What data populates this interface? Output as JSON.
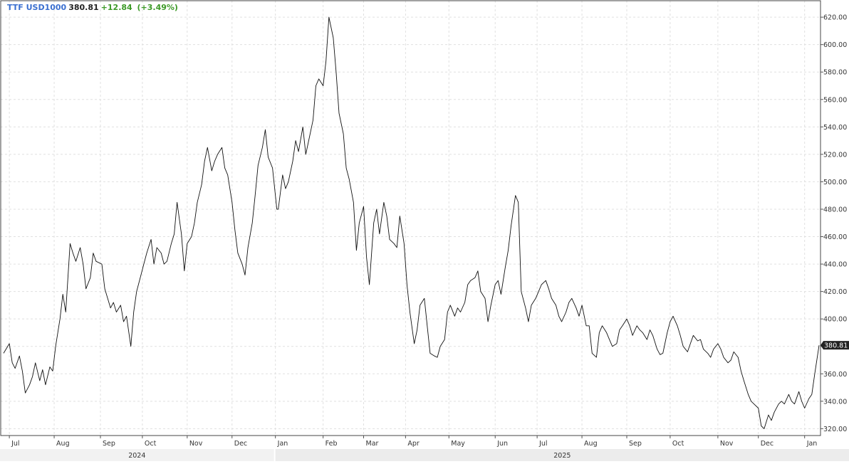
{
  "header": {
    "symbol": "TTF USD1000",
    "last_price": "380.81",
    "change": "+12.84",
    "change_pct": "(+3.49%)",
    "change_color": "#3d9a28"
  },
  "colors": {
    "line": "#111111",
    "grid": "#e0e0e0",
    "axis_text": "#333333",
    "year_band": "#ececec",
    "price_tag_bg": "#222222",
    "price_tag_text": "#ffffff"
  },
  "chart_data": {
    "type": "line",
    "title": "TTF USD1000",
    "xlabel": "",
    "ylabel": "",
    "y_axis_side": "right",
    "grid": true,
    "ylim": [
      315,
      632
    ],
    "y_ticks": [
      "320.00",
      "340.00",
      "360.00",
      "380.00",
      "400.00",
      "420.00",
      "440.00",
      "460.00",
      "480.00",
      "500.00",
      "520.00",
      "540.00",
      "560.00",
      "580.00",
      "600.00",
      "620.00"
    ],
    "x_month_labels": [
      {
        "label": "Jul",
        "date": "2024-07-01"
      },
      {
        "label": "Aug",
        "date": "2024-08-01"
      },
      {
        "label": "Sep",
        "date": "2024-09-02"
      },
      {
        "label": "Oct",
        "date": "2024-10-01"
      },
      {
        "label": "Nov",
        "date": "2024-11-01"
      },
      {
        "label": "Dec",
        "date": "2024-12-02"
      },
      {
        "label": "Jan",
        "date": "2025-01-01"
      },
      {
        "label": "Feb",
        "date": "2025-02-03"
      },
      {
        "label": "Mar",
        "date": "2025-03-03"
      },
      {
        "label": "Apr",
        "date": "2025-04-01"
      },
      {
        "label": "May",
        "date": "2025-05-01"
      },
      {
        "label": "Jun",
        "date": "2025-06-02"
      },
      {
        "label": "Jul",
        "date": "2025-07-01"
      },
      {
        "label": "Aug",
        "date": "2025-08-01"
      },
      {
        "label": "Sep",
        "date": "2025-09-01"
      },
      {
        "label": "Oct",
        "date": "2025-10-01"
      },
      {
        "label": "Nov",
        "date": "2025-11-03"
      },
      {
        "label": "Dec",
        "date": "2025-12-01"
      },
      {
        "label": "Jan",
        "date": "2026-01-02"
      }
    ],
    "x_year_labels": [
      {
        "label": "2024",
        "from": "2024-06-27",
        "to": "2024-12-31"
      },
      {
        "label": "2025",
        "from": "2025-01-01",
        "to": "2026-01-12"
      }
    ],
    "last_value_tag": "380.81",
    "series": [
      {
        "values": [
          [
            "2024-06-27",
            375
          ],
          [
            "2024-07-01",
            382
          ],
          [
            "2024-07-03",
            368
          ],
          [
            "2024-07-05",
            364
          ],
          [
            "2024-07-08",
            373
          ],
          [
            "2024-07-10",
            362
          ],
          [
            "2024-07-12",
            346
          ],
          [
            "2024-07-15",
            352
          ],
          [
            "2024-07-17",
            358
          ],
          [
            "2024-07-19",
            368
          ],
          [
            "2024-07-22",
            355
          ],
          [
            "2024-07-24",
            363
          ],
          [
            "2024-07-26",
            352
          ],
          [
            "2024-07-29",
            365
          ],
          [
            "2024-07-31",
            362
          ],
          [
            "2024-08-02",
            380
          ],
          [
            "2024-08-05",
            400
          ],
          [
            "2024-08-07",
            418
          ],
          [
            "2024-08-09",
            405
          ],
          [
            "2024-08-12",
            455
          ],
          [
            "2024-08-14",
            448
          ],
          [
            "2024-08-16",
            442
          ],
          [
            "2024-08-19",
            452
          ],
          [
            "2024-08-21",
            440
          ],
          [
            "2024-08-23",
            422
          ],
          [
            "2024-08-26",
            430
          ],
          [
            "2024-08-28",
            448
          ],
          [
            "2024-08-30",
            442
          ],
          [
            "2024-09-03",
            440
          ],
          [
            "2024-09-05",
            422
          ],
          [
            "2024-09-09",
            408
          ],
          [
            "2024-09-11",
            412
          ],
          [
            "2024-09-13",
            405
          ],
          [
            "2024-09-16",
            410
          ],
          [
            "2024-09-18",
            398
          ],
          [
            "2024-09-20",
            402
          ],
          [
            "2024-09-23",
            380
          ],
          [
            "2024-09-25",
            405
          ],
          [
            "2024-09-27",
            420
          ],
          [
            "2024-09-30",
            432
          ],
          [
            "2024-10-02",
            440
          ],
          [
            "2024-10-04",
            448
          ],
          [
            "2024-10-07",
            458
          ],
          [
            "2024-10-09",
            440
          ],
          [
            "2024-10-11",
            452
          ],
          [
            "2024-10-14",
            448
          ],
          [
            "2024-10-16",
            440
          ],
          [
            "2024-10-18",
            442
          ],
          [
            "2024-10-21",
            455
          ],
          [
            "2024-10-23",
            462
          ],
          [
            "2024-10-25",
            485
          ],
          [
            "2024-10-28",
            462
          ],
          [
            "2024-10-30",
            435
          ],
          [
            "2024-11-01",
            455
          ],
          [
            "2024-11-04",
            460
          ],
          [
            "2024-11-06",
            470
          ],
          [
            "2024-11-08",
            485
          ],
          [
            "2024-11-11",
            498
          ],
          [
            "2024-11-13",
            515
          ],
          [
            "2024-11-15",
            525
          ],
          [
            "2024-11-18",
            508
          ],
          [
            "2024-11-20",
            515
          ],
          [
            "2024-11-22",
            520
          ],
          [
            "2024-11-25",
            525
          ],
          [
            "2024-11-27",
            510
          ],
          [
            "2024-11-29",
            505
          ],
          [
            "2024-12-02",
            485
          ],
          [
            "2024-12-04",
            465
          ],
          [
            "2024-12-06",
            448
          ],
          [
            "2024-12-09",
            440
          ],
          [
            "2024-12-11",
            432
          ],
          [
            "2024-12-13",
            452
          ],
          [
            "2024-12-16",
            470
          ],
          [
            "2024-12-18",
            490
          ],
          [
            "2024-12-20",
            512
          ],
          [
            "2024-12-23",
            525
          ],
          [
            "2024-12-25",
            538
          ],
          [
            "2024-12-27",
            518
          ],
          [
            "2024-12-30",
            510
          ],
          [
            "2025-01-02",
            480
          ],
          [
            "2025-01-03",
            480
          ],
          [
            "2025-01-06",
            505
          ],
          [
            "2025-01-08",
            495
          ],
          [
            "2025-01-10",
            500
          ],
          [
            "2025-01-13",
            515
          ],
          [
            "2025-01-15",
            530
          ],
          [
            "2025-01-17",
            522
          ],
          [
            "2025-01-20",
            540
          ],
          [
            "2025-01-22",
            520
          ],
          [
            "2025-01-24",
            530
          ],
          [
            "2025-01-27",
            545
          ],
          [
            "2025-01-29",
            570
          ],
          [
            "2025-01-31",
            575
          ],
          [
            "2025-02-03",
            570
          ],
          [
            "2025-02-05",
            588
          ],
          [
            "2025-02-07",
            620
          ],
          [
            "2025-02-10",
            605
          ],
          [
            "2025-02-12",
            580
          ],
          [
            "2025-02-14",
            550
          ],
          [
            "2025-02-17",
            535
          ],
          [
            "2025-02-19",
            510
          ],
          [
            "2025-02-21",
            502
          ],
          [
            "2025-02-24",
            485
          ],
          [
            "2025-02-26",
            450
          ],
          [
            "2025-02-28",
            470
          ],
          [
            "2025-03-03",
            482
          ],
          [
            "2025-03-05",
            445
          ],
          [
            "2025-03-07",
            425
          ],
          [
            "2025-03-10",
            470
          ],
          [
            "2025-03-12",
            480
          ],
          [
            "2025-03-14",
            462
          ],
          [
            "2025-03-17",
            485
          ],
          [
            "2025-03-19",
            475
          ],
          [
            "2025-03-21",
            458
          ],
          [
            "2025-03-24",
            455
          ],
          [
            "2025-03-26",
            452
          ],
          [
            "2025-03-28",
            475
          ],
          [
            "2025-03-31",
            455
          ],
          [
            "2025-04-02",
            425
          ],
          [
            "2025-04-04",
            405
          ],
          [
            "2025-04-07",
            382
          ],
          [
            "2025-04-09",
            392
          ],
          [
            "2025-04-11",
            410
          ],
          [
            "2025-04-14",
            415
          ],
          [
            "2025-04-16",
            395
          ],
          [
            "2025-04-18",
            375
          ],
          [
            "2025-04-21",
            373
          ],
          [
            "2025-04-23",
            372
          ],
          [
            "2025-04-25",
            380
          ],
          [
            "2025-04-28",
            385
          ],
          [
            "2025-04-30",
            405
          ],
          [
            "2025-05-02",
            410
          ],
          [
            "2025-05-05",
            402
          ],
          [
            "2025-05-07",
            408
          ],
          [
            "2025-05-09",
            405
          ],
          [
            "2025-05-12",
            412
          ],
          [
            "2025-05-14",
            425
          ],
          [
            "2025-05-16",
            428
          ],
          [
            "2025-05-19",
            430
          ],
          [
            "2025-05-21",
            435
          ],
          [
            "2025-05-23",
            420
          ],
          [
            "2025-05-26",
            415
          ],
          [
            "2025-05-28",
            398
          ],
          [
            "2025-05-30",
            410
          ],
          [
            "2025-06-02",
            425
          ],
          [
            "2025-06-04",
            428
          ],
          [
            "2025-06-06",
            418
          ],
          [
            "2025-06-09",
            438
          ],
          [
            "2025-06-11",
            450
          ],
          [
            "2025-06-13",
            468
          ],
          [
            "2025-06-16",
            490
          ],
          [
            "2025-06-18",
            485
          ],
          [
            "2025-06-20",
            420
          ],
          [
            "2025-06-23",
            408
          ],
          [
            "2025-06-25",
            398
          ],
          [
            "2025-06-27",
            410
          ],
          [
            "2025-06-30",
            415
          ],
          [
            "2025-07-02",
            420
          ],
          [
            "2025-07-04",
            425
          ],
          [
            "2025-07-07",
            428
          ],
          [
            "2025-07-09",
            422
          ],
          [
            "2025-07-11",
            415
          ],
          [
            "2025-07-14",
            410
          ],
          [
            "2025-07-16",
            402
          ],
          [
            "2025-07-18",
            398
          ],
          [
            "2025-07-21",
            405
          ],
          [
            "2025-07-23",
            412
          ],
          [
            "2025-07-25",
            415
          ],
          [
            "2025-07-28",
            408
          ],
          [
            "2025-07-30",
            402
          ],
          [
            "2025-08-01",
            410
          ],
          [
            "2025-08-04",
            395
          ],
          [
            "2025-08-06",
            395
          ],
          [
            "2025-08-08",
            375
          ],
          [
            "2025-08-11",
            372
          ],
          [
            "2025-08-13",
            390
          ],
          [
            "2025-08-15",
            395
          ],
          [
            "2025-08-18",
            390
          ],
          [
            "2025-08-20",
            385
          ],
          [
            "2025-08-22",
            380
          ],
          [
            "2025-08-25",
            382
          ],
          [
            "2025-08-27",
            392
          ],
          [
            "2025-08-29",
            395
          ],
          [
            "2025-09-01",
            400
          ],
          [
            "2025-09-03",
            395
          ],
          [
            "2025-09-05",
            388
          ],
          [
            "2025-09-08",
            395
          ],
          [
            "2025-09-10",
            392
          ],
          [
            "2025-09-12",
            390
          ],
          [
            "2025-09-15",
            385
          ],
          [
            "2025-09-17",
            392
          ],
          [
            "2025-09-19",
            388
          ],
          [
            "2025-09-22",
            378
          ],
          [
            "2025-09-24",
            374
          ],
          [
            "2025-09-26",
            375
          ],
          [
            "2025-09-29",
            390
          ],
          [
            "2025-10-01",
            398
          ],
          [
            "2025-10-03",
            402
          ],
          [
            "2025-10-06",
            395
          ],
          [
            "2025-10-08",
            388
          ],
          [
            "2025-10-10",
            380
          ],
          [
            "2025-10-13",
            376
          ],
          [
            "2025-10-15",
            382
          ],
          [
            "2025-10-17",
            388
          ],
          [
            "2025-10-20",
            384
          ],
          [
            "2025-10-22",
            385
          ],
          [
            "2025-10-24",
            378
          ],
          [
            "2025-10-27",
            375
          ],
          [
            "2025-10-29",
            372
          ],
          [
            "2025-10-31",
            378
          ],
          [
            "2025-11-03",
            382
          ],
          [
            "2025-11-05",
            378
          ],
          [
            "2025-11-07",
            372
          ],
          [
            "2025-11-10",
            368
          ],
          [
            "2025-11-12",
            370
          ],
          [
            "2025-11-14",
            376
          ],
          [
            "2025-11-17",
            372
          ],
          [
            "2025-11-19",
            362
          ],
          [
            "2025-11-21",
            355
          ],
          [
            "2025-11-24",
            345
          ],
          [
            "2025-11-26",
            340
          ],
          [
            "2025-11-28",
            338
          ],
          [
            "2025-12-01",
            335
          ],
          [
            "2025-12-03",
            322
          ],
          [
            "2025-12-05",
            320
          ],
          [
            "2025-12-08",
            330
          ],
          [
            "2025-12-10",
            326
          ],
          [
            "2025-12-12",
            332
          ],
          [
            "2025-12-15",
            338
          ],
          [
            "2025-12-17",
            340
          ],
          [
            "2025-12-19",
            338
          ],
          [
            "2025-12-22",
            345
          ],
          [
            "2025-12-24",
            340
          ],
          [
            "2025-12-26",
            338
          ],
          [
            "2025-12-29",
            347
          ],
          [
            "2025-12-31",
            340
          ],
          [
            "2026-01-02",
            335
          ],
          [
            "2026-01-05",
            342
          ],
          [
            "2026-01-07",
            345
          ],
          [
            "2026-01-09",
            360
          ],
          [
            "2026-01-12",
            380.81
          ]
        ]
      }
    ]
  }
}
